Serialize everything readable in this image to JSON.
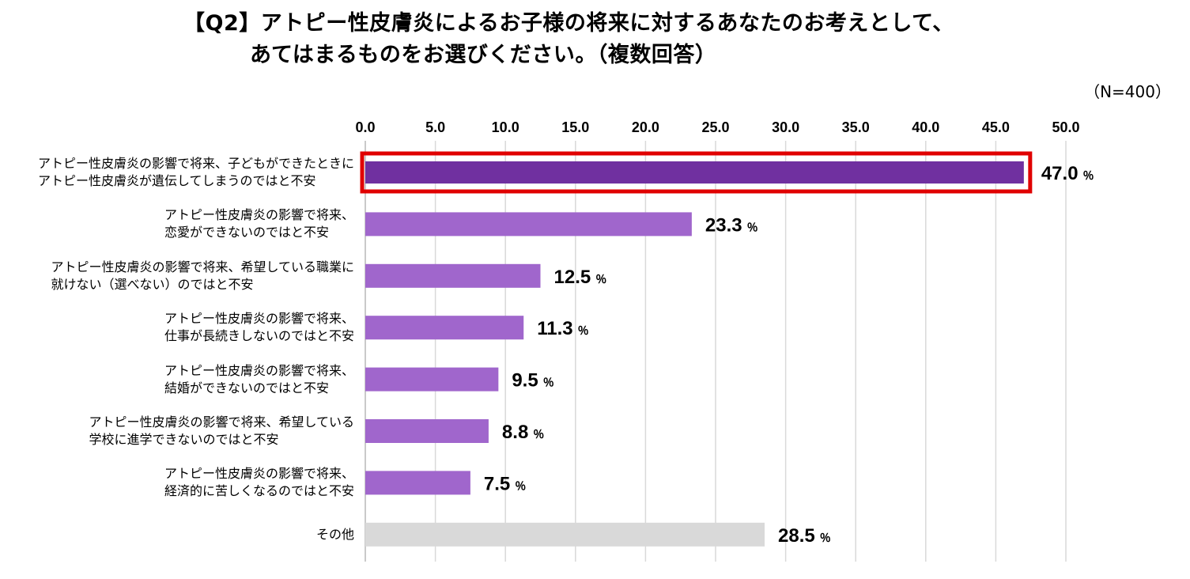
{
  "title": {
    "line1": "【Q2】アトピー性皮膚炎によるお子様の将来に対するあなたのお考えとして、",
    "line2": "あてはまるものをお選びください。（複数回答）"
  },
  "sample_size": "（N=400）",
  "colors": {
    "highlight_bar": "#7030a0",
    "bar": "#a066cc",
    "other_bar": "#d9d9d9",
    "highlight_frame": "#e00000",
    "grid": "#d9d9d9"
  },
  "chart_data": {
    "type": "bar",
    "orientation": "horizontal",
    "xlim": [
      0,
      50
    ],
    "ticks": [
      "0.0",
      "5.0",
      "10.0",
      "15.0",
      "20.0",
      "25.0",
      "30.0",
      "35.0",
      "40.0",
      "45.0",
      "50.0"
    ],
    "value_suffix": "％",
    "categories": [
      {
        "line1": "アトピー性皮膚炎の影響で将来、子どもができたときに",
        "line2": "アトピー性皮膚炎が遺伝してしまうのではと不安",
        "value": 47.0,
        "label": "47.0",
        "style": "highlight"
      },
      {
        "line1": "アトピー性皮膚炎の影響で将来、",
        "line2": "恋愛ができないのではと不安",
        "value": 23.3,
        "label": "23.3",
        "style": "normal"
      },
      {
        "line1": "アトピー性皮膚炎の影響で将来、希望している職業に",
        "line2": "就けない（選べない）のではと不安",
        "value": 12.5,
        "label": "12.5",
        "style": "normal"
      },
      {
        "line1": "アトピー性皮膚炎の影響で将来、",
        "line2": "仕事が長続きしないのではと不安",
        "value": 11.3,
        "label": "11.3",
        "style": "normal"
      },
      {
        "line1": "アトピー性皮膚炎の影響で将来、",
        "line2": "結婚ができないのではと不安",
        "value": 9.5,
        "label": "9.5",
        "style": "normal"
      },
      {
        "line1": "アトピー性皮膚炎の影響で将来、希望している",
        "line2": "学校に進学できないのではと不安",
        "value": 8.8,
        "label": "8.8",
        "style": "normal"
      },
      {
        "line1": "アトピー性皮膚炎の影響で将来、",
        "line2": "経済的に苦しくなるのではと不安",
        "value": 7.5,
        "label": "7.5",
        "style": "normal"
      },
      {
        "line1": "その他",
        "line2": "",
        "value": 28.5,
        "label": "28.5",
        "style": "other"
      }
    ]
  }
}
